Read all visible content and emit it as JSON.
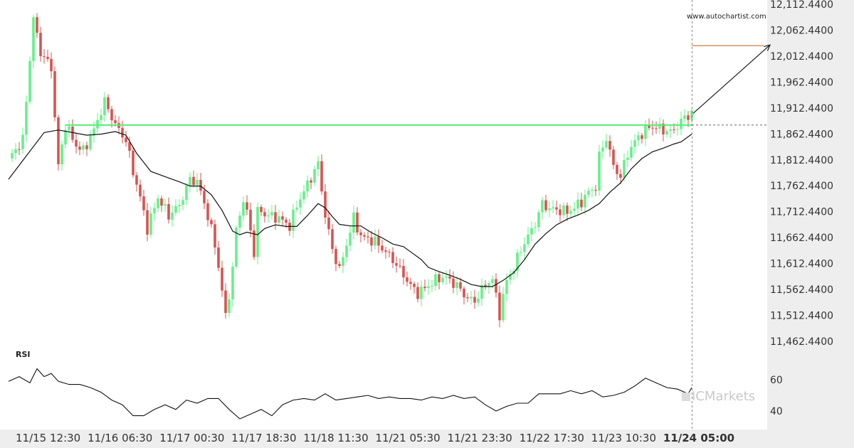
{
  "watermark_url": "www.autochartist.com",
  "brand": "ICMarkets",
  "colors": {
    "up": "#66f08a",
    "down": "#d9534f",
    "level": "#55ee77",
    "target": "#d08a4a",
    "ma": "#111111",
    "rsi": "#111111",
    "axis_bg": "#eeeeee"
  },
  "chart_data": {
    "type": "line",
    "x_tick_labels": [
      "11/15 12:30",
      "11/16 06:30",
      "11/17 00:30",
      "11/17 18:30",
      "11/18 11:30",
      "11/21 05:30",
      "11/21 23:30",
      "11/22 17:30",
      "11/23 10:30",
      "11/24 05:00"
    ],
    "x_tick_highlight": "11/24 05:00",
    "y_tick_labels": [
      "12,112.4400",
      "12,062.4400",
      "12,012.4400",
      "11,962.4400",
      "11,912.4400",
      "11,862.4400",
      "11,812.4400",
      "11,762.4400",
      "11,712.4400",
      "11,662.4400",
      "11,612.4400",
      "11,562.4400",
      "11,512.4400",
      "11,462.4400"
    ],
    "ylim": [
      11462.44,
      12112.44
    ],
    "price_path": [
      [
        0,
        11815
      ],
      [
        4,
        11850
      ],
      [
        7,
        12085
      ],
      [
        9,
        12020
      ],
      [
        12,
        11990
      ],
      [
        14,
        11800
      ],
      [
        16,
        11880
      ],
      [
        19,
        11840
      ],
      [
        21,
        11830
      ],
      [
        24,
        11870
      ],
      [
        27,
        11925
      ],
      [
        30,
        11880
      ],
      [
        33,
        11850
      ],
      [
        35,
        11790
      ],
      [
        37,
        11740
      ],
      [
        39,
        11680
      ],
      [
        42,
        11740
      ],
      [
        45,
        11705
      ],
      [
        48,
        11725
      ],
      [
        51,
        11775
      ],
      [
        53,
        11770
      ],
      [
        55,
        11730
      ],
      [
        58,
        11650
      ],
      [
        60,
        11560
      ],
      [
        61,
        11510
      ],
      [
        63,
        11600
      ],
      [
        64,
        11680
      ],
      [
        66,
        11735
      ],
      [
        68,
        11680
      ],
      [
        69,
        11630
      ],
      [
        70,
        11715
      ],
      [
        73,
        11705
      ],
      [
        76,
        11700
      ],
      [
        79,
        11685
      ],
      [
        81,
        11725
      ],
      [
        84,
        11765
      ],
      [
        87,
        11805
      ],
      [
        88,
        11755
      ],
      [
        89,
        11705
      ],
      [
        91,
        11640
      ],
      [
        93,
        11600
      ],
      [
        95,
        11650
      ],
      [
        97,
        11700
      ],
      [
        99,
        11665
      ],
      [
        101,
        11660
      ],
      [
        103,
        11655
      ],
      [
        106,
        11635
      ],
      [
        108,
        11620
      ],
      [
        111,
        11590
      ],
      [
        113,
        11570
      ],
      [
        115,
        11555
      ],
      [
        118,
        11570
      ],
      [
        121,
        11585
      ],
      [
        123,
        11585
      ],
      [
        126,
        11570
      ],
      [
        129,
        11545
      ],
      [
        131,
        11540
      ],
      [
        134,
        11572
      ],
      [
        136,
        11582
      ],
      [
        138,
        11515
      ],
      [
        140,
        11580
      ],
      [
        142,
        11605
      ],
      [
        144,
        11640
      ],
      [
        146,
        11665
      ],
      [
        148,
        11690
      ],
      [
        150,
        11728
      ],
      [
        152,
        11718
      ],
      [
        155,
        11715
      ],
      [
        157,
        11712
      ],
      [
        159,
        11720
      ],
      [
        161,
        11732
      ],
      [
        163,
        11750
      ],
      [
        165,
        11760
      ],
      [
        166,
        11820
      ],
      [
        168,
        11855
      ],
      [
        170,
        11800
      ],
      [
        172,
        11780
      ],
      [
        174,
        11825
      ],
      [
        176,
        11848
      ],
      [
        178,
        11864
      ],
      [
        180,
        11876
      ],
      [
        182,
        11875
      ],
      [
        184,
        11870
      ],
      [
        186,
        11866
      ],
      [
        188,
        11878
      ],
      [
        190,
        11895
      ],
      [
        192,
        11902
      ]
    ],
    "moving_average": [
      [
        0,
        11775
      ],
      [
        5,
        11820
      ],
      [
        10,
        11865
      ],
      [
        14,
        11870
      ],
      [
        18,
        11865
      ],
      [
        22,
        11860
      ],
      [
        26,
        11862
      ],
      [
        30,
        11867
      ],
      [
        33,
        11860
      ],
      [
        36,
        11825
      ],
      [
        40,
        11790
      ],
      [
        44,
        11780
      ],
      [
        48,
        11770
      ],
      [
        51,
        11762
      ],
      [
        54,
        11762
      ],
      [
        57,
        11745
      ],
      [
        60,
        11715
      ],
      [
        63,
        11675
      ],
      [
        65,
        11668
      ],
      [
        67,
        11673
      ],
      [
        70,
        11668
      ],
      [
        72,
        11680
      ],
      [
        75,
        11687
      ],
      [
        78,
        11684
      ],
      [
        81,
        11684
      ],
      [
        84,
        11705
      ],
      [
        87,
        11728
      ],
      [
        89,
        11720
      ],
      [
        91,
        11703
      ],
      [
        93,
        11688
      ],
      [
        96,
        11685
      ],
      [
        99,
        11685
      ],
      [
        102,
        11672
      ],
      [
        105,
        11662
      ],
      [
        108,
        11650
      ],
      [
        111,
        11645
      ],
      [
        114,
        11630
      ],
      [
        116,
        11620
      ],
      [
        118,
        11605
      ],
      [
        121,
        11597
      ],
      [
        124,
        11590
      ],
      [
        127,
        11582
      ],
      [
        130,
        11572
      ],
      [
        133,
        11568
      ],
      [
        136,
        11568
      ],
      [
        139,
        11580
      ],
      [
        142,
        11595
      ],
      [
        145,
        11620
      ],
      [
        148,
        11650
      ],
      [
        151,
        11670
      ],
      [
        154,
        11687
      ],
      [
        157,
        11698
      ],
      [
        160,
        11706
      ],
      [
        163,
        11715
      ],
      [
        166,
        11728
      ],
      [
        169,
        11750
      ],
      [
        172,
        11768
      ],
      [
        175,
        11795
      ],
      [
        178,
        11815
      ],
      [
        181,
        11828
      ],
      [
        184,
        11835
      ],
      [
        187,
        11843
      ],
      [
        189,
        11847
      ],
      [
        192,
        11862
      ]
    ],
    "resistance_level": 11879.5,
    "resistance_start": 16,
    "current_index": 192,
    "current_price": 11879.5,
    "projection_end_index": 214,
    "projection_target": 12034,
    "rsi_label": "RSI",
    "rsi_ticks": [
      "60",
      "40"
    ],
    "rsi_ylim": [
      30,
      80
    ],
    "rsi": [
      [
        0,
        59
      ],
      [
        3,
        62
      ],
      [
        6,
        58
      ],
      [
        8,
        67
      ],
      [
        10,
        62
      ],
      [
        12,
        64
      ],
      [
        14,
        59
      ],
      [
        17,
        57
      ],
      [
        20,
        57
      ],
      [
        23,
        55
      ],
      [
        26,
        52
      ],
      [
        29,
        47
      ],
      [
        32,
        44
      ],
      [
        35,
        37
      ],
      [
        38,
        37
      ],
      [
        41,
        41
      ],
      [
        44,
        44
      ],
      [
        47,
        41
      ],
      [
        50,
        47
      ],
      [
        53,
        45
      ],
      [
        56,
        48
      ],
      [
        59,
        48
      ],
      [
        62,
        41
      ],
      [
        65,
        35
      ],
      [
        68,
        38
      ],
      [
        71,
        41
      ],
      [
        74,
        37
      ],
      [
        77,
        44
      ],
      [
        80,
        47
      ],
      [
        83,
        48
      ],
      [
        86,
        47
      ],
      [
        89,
        51
      ],
      [
        92,
        47
      ],
      [
        95,
        48
      ],
      [
        98,
        49
      ],
      [
        101,
        50
      ],
      [
        104,
        48
      ],
      [
        107,
        49
      ],
      [
        110,
        48
      ],
      [
        113,
        48
      ],
      [
        116,
        47
      ],
      [
        119,
        49
      ],
      [
        122,
        48
      ],
      [
        125,
        50
      ],
      [
        128,
        48
      ],
      [
        131,
        49
      ],
      [
        134,
        44
      ],
      [
        137,
        40
      ],
      [
        140,
        43
      ],
      [
        143,
        45
      ],
      [
        146,
        45
      ],
      [
        149,
        51
      ],
      [
        152,
        51
      ],
      [
        155,
        51
      ],
      [
        158,
        53
      ],
      [
        161,
        51
      ],
      [
        164,
        53
      ],
      [
        167,
        49
      ],
      [
        170,
        50
      ],
      [
        173,
        52
      ],
      [
        176,
        56
      ],
      [
        179,
        61
      ],
      [
        182,
        58
      ],
      [
        185,
        55
      ],
      [
        188,
        54
      ],
      [
        191,
        51
      ],
      [
        192,
        55
      ]
    ]
  }
}
